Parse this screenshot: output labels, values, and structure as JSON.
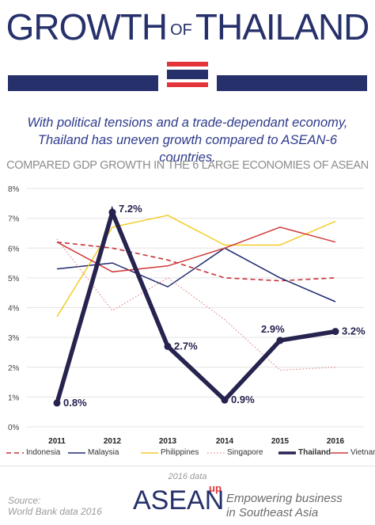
{
  "header": {
    "title_part1": "GROWTH",
    "title_of": "OF",
    "title_part2": "THAILAND"
  },
  "subtitle": {
    "line1": "With political tensions and a trade-dependant economy,",
    "line2": "Thailand has uneven growth compared to ASEAN-6 countries."
  },
  "colors": {
    "navy": "#26306a",
    "flag_red": "#e2343a",
    "flag_white": "#ffffff",
    "indonesia": "#c8323a",
    "malaysia": "#1f2a70",
    "philippines": "#f2cc2a",
    "singapore": "#e58a8a",
    "thailand": "#26234f",
    "vietnam": "#d23a3a"
  },
  "chart_data": {
    "type": "line",
    "title": "COMPARED GDP GROWTH IN THE 6 LARGE ECONOMIES OF ASEAN",
    "x": [
      "2011",
      "2012",
      "2013",
      "2014",
      "2015",
      "2016"
    ],
    "ylim": [
      0,
      8
    ],
    "yticks": [
      "0%",
      "1%",
      "2%",
      "3%",
      "4%",
      "5%",
      "6%",
      "7%",
      "8%"
    ],
    "grid": true,
    "legend_position": "bottom",
    "series": [
      {
        "name": "Indonesia",
        "values": [
          6.2,
          6.0,
          5.6,
          5.0,
          4.9,
          5.0
        ],
        "style": "dashed"
      },
      {
        "name": "Malaysia",
        "values": [
          5.3,
          5.5,
          4.7,
          6.0,
          5.0,
          4.2
        ],
        "style": "solid"
      },
      {
        "name": "Philippines",
        "values": [
          3.7,
          6.7,
          7.1,
          6.1,
          6.1,
          6.9
        ],
        "style": "solid"
      },
      {
        "name": "Singapore",
        "values": [
          6.3,
          3.9,
          5.0,
          3.6,
          1.9,
          2.0
        ],
        "style": "dotted"
      },
      {
        "name": "Thailand",
        "values": [
          0.8,
          7.2,
          2.7,
          0.9,
          2.9,
          3.2
        ],
        "style": "bold",
        "labels": [
          "0.8%",
          "7.2%",
          "2.7%",
          "0.9%",
          "2.9%",
          "3.2%"
        ]
      },
      {
        "name": "Vietnam",
        "values": [
          6.2,
          5.2,
          5.4,
          6.0,
          6.7,
          6.2
        ],
        "style": "solid"
      }
    ]
  },
  "footer": {
    "data_year": "2016 data",
    "source_line1": "Source:",
    "source_line2": "World Bank data 2016",
    "logo_text": "ASEAN",
    "logo_sup": "up",
    "tagline_line1": "Empowering business",
    "tagline_line2": "in Southeast Asia"
  }
}
